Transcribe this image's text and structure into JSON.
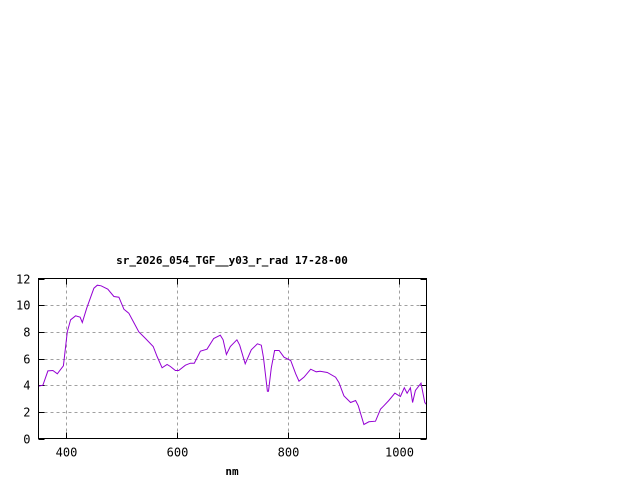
{
  "chart_data": {
    "type": "line",
    "title": "sr_2026_054_TGF__y03_r_rad 17-28-00",
    "xlabel": "nm",
    "ylabel": "",
    "xlim": [
      350,
      1050
    ],
    "ylim": [
      0,
      12
    ],
    "xticks": [
      400,
      600,
      800,
      1000
    ],
    "yticks": [
      0,
      2,
      4,
      6,
      8,
      10,
      12
    ],
    "grid": true,
    "line_color": "#9400d3",
    "series": [
      {
        "x": [
          350,
          358,
          367,
          376,
          384,
          395,
          402,
          408,
          417,
          425,
          429,
          437,
          450,
          456,
          463,
          475,
          486,
          495,
          504,
          513,
          522,
          531,
          543,
          557,
          564,
          573,
          582,
          588,
          597,
          603,
          615,
          624,
          631,
          642,
          654,
          666,
          678,
          683,
          689,
          696,
          708,
          713,
          723,
          734,
          745,
          752,
          756,
          763,
          765,
          770,
          776,
          784,
          793,
          805,
          814,
          820,
          829,
          841,
          851,
          858,
          871,
          886,
          892,
          901,
          913,
          922,
          927,
          937,
          946,
          958,
          967,
          973,
          982,
          993,
          1003,
          1010,
          1015,
          1021,
          1025,
          1030,
          1040,
          1047,
          1050
        ],
        "y": [
          3.93,
          4.0,
          5.07,
          5.1,
          4.85,
          5.45,
          8.0,
          8.9,
          9.2,
          9.1,
          8.7,
          9.77,
          11.27,
          11.5,
          11.45,
          11.2,
          10.65,
          10.6,
          9.7,
          9.4,
          8.7,
          8.0,
          7.5,
          6.9,
          6.15,
          5.3,
          5.55,
          5.4,
          5.1,
          5.1,
          5.5,
          5.65,
          5.65,
          6.55,
          6.7,
          7.5,
          7.75,
          7.4,
          6.3,
          6.9,
          7.4,
          7.0,
          5.6,
          6.65,
          7.1,
          7.0,
          6.05,
          3.55,
          3.55,
          5.3,
          6.6,
          6.6,
          6.1,
          5.85,
          4.85,
          4.3,
          4.6,
          5.2,
          5.0,
          5.05,
          4.95,
          4.6,
          4.2,
          3.2,
          2.7,
          2.85,
          2.45,
          1.05,
          1.25,
          1.3,
          2.2,
          2.45,
          2.85,
          3.4,
          3.15,
          3.8,
          3.4,
          3.8,
          2.7,
          3.6,
          4.15,
          2.7,
          2.55
        ]
      }
    ]
  }
}
